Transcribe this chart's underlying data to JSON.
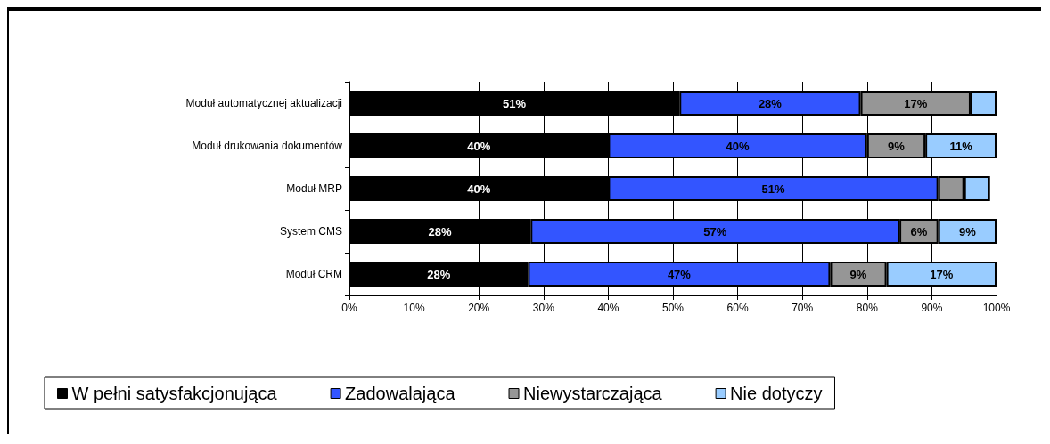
{
  "chart_data": {
    "type": "bar",
    "orientation": "horizontal",
    "stacked": true,
    "categories": [
      "Moduł automatycznej aktualizacji",
      "Moduł drukowania dokumentów",
      "Moduł MRP",
      "System CMS",
      "Moduł CRM"
    ],
    "series": [
      {
        "name": "W pełni satysfakcjonująca",
        "color": "#000000",
        "values": [
          51,
          40,
          40,
          28,
          27.6
        ],
        "value_labels": [
          "51%",
          "40%",
          "40%",
          "28%",
          "28%"
        ]
      },
      {
        "name": "Zadowalająca",
        "color": "#3355ff",
        "values": [
          28,
          40,
          51,
          57,
          46.7
        ],
        "value_labels": [
          "28%",
          "40%",
          "51%",
          "57%",
          "47%"
        ]
      },
      {
        "name": "Niewystarczająca",
        "color": "#969696",
        "values": [
          17,
          9,
          4,
          6,
          8.7
        ],
        "value_labels": [
          "17%",
          "9%",
          null,
          "6%",
          "9%"
        ]
      },
      {
        "name": "Nie dotyczy",
        "color": "#99ccff",
        "values": [
          4,
          11,
          4,
          9,
          17
        ],
        "value_labels": [
          null,
          "11%",
          null,
          "9%",
          "17%"
        ]
      }
    ],
    "xlim": [
      0,
      100
    ],
    "xticks": [
      {
        "value": 0,
        "label": "0%"
      },
      {
        "value": 10,
        "label": "10%"
      },
      {
        "value": 20,
        "label": "20%"
      },
      {
        "value": 30,
        "label": "30%"
      },
      {
        "value": 40,
        "label": "40%"
      },
      {
        "value": 50,
        "label": "50%"
      },
      {
        "value": 60,
        "label": "60%"
      },
      {
        "value": 70,
        "label": "70%"
      },
      {
        "value": 80,
        "label": "80%"
      },
      {
        "value": 90,
        "label": "90%"
      },
      {
        "value": 100,
        "label": "100%"
      }
    ],
    "grid": "x",
    "legend": "bottom"
  }
}
